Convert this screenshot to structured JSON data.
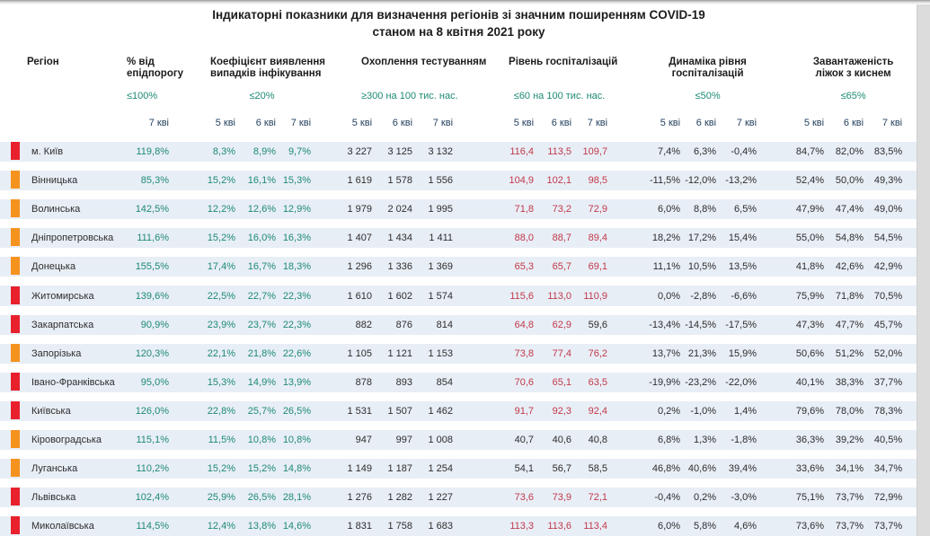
{
  "title": {
    "line1": "Індикаторні показники для визначення регіонів зі значним поширенням COVID-19",
    "line2": "станом на 8 квітня 2021 року"
  },
  "colors": {
    "alert_red_marker": "#e8212d",
    "alert_orange_marker": "#f6921e",
    "value_green": "#1d8a72",
    "value_red": "#c0394a",
    "row_band": "#e8eef6",
    "date_navy": "#25405e"
  },
  "columns": {
    "region_label": "Регіон",
    "hospital_red_threshold": 60,
    "groups": [
      {
        "title_lines": [
          "% від",
          "епідпорогу"
        ],
        "threshold": "≤100%",
        "dates": [
          "7 кві"
        ]
      },
      {
        "title_lines": [
          "Коефіцієнт виявлення",
          "випадків інфікування"
        ],
        "threshold": "≤20%",
        "dates": [
          "5 кві",
          "6 кві",
          "7 кві"
        ]
      },
      {
        "title_lines": [
          "Охоплення тестуванням"
        ],
        "threshold": "≥300 на 100 тис. нас.",
        "dates": [
          "5 кві",
          "6 кві",
          "7 кві"
        ]
      },
      {
        "title_lines": [
          "Рівень госпіталізацій"
        ],
        "threshold": "≤60 на 100 тис. нас.",
        "dates": [
          "5 кві",
          "6 кві",
          "7 кві"
        ]
      },
      {
        "title_lines": [
          "Динаміка рівня",
          "госпіталізацій"
        ],
        "threshold": "≤50%",
        "dates": [
          "5 кві",
          "6 кві",
          "7 кві"
        ]
      },
      {
        "title_lines": [
          "Завантаженість",
          "ліжок з киснем"
        ],
        "threshold": "≤65%",
        "dates": [
          "5 кві",
          "6 кві",
          "7 кві"
        ]
      }
    ]
  },
  "rows": [
    {
      "region": "м. Київ",
      "marker": "red",
      "pct": "119,8%",
      "coef": [
        "8,3%",
        "8,9%",
        "9,7%"
      ],
      "test": [
        "3 227",
        "3 125",
        "3 132"
      ],
      "hosp": [
        "116,4",
        "113,5",
        "109,7"
      ],
      "dyn": [
        "7,4%",
        "6,3%",
        "-0,4%"
      ],
      "beds": [
        "84,7%",
        "82,0%",
        "83,5%"
      ]
    },
    {
      "region": "Вінницька",
      "marker": "orange",
      "pct": "85,3%",
      "coef": [
        "15,2%",
        "16,1%",
        "15,3%"
      ],
      "test": [
        "1 619",
        "1 578",
        "1 556"
      ],
      "hosp": [
        "104,9",
        "102,1",
        "98,5"
      ],
      "dyn": [
        "-11,5%",
        "-12,0%",
        "-13,2%"
      ],
      "beds": [
        "52,4%",
        "50,0%",
        "49,3%"
      ]
    },
    {
      "region": "Волинська",
      "marker": "orange",
      "pct": "142,5%",
      "coef": [
        "12,2%",
        "12,6%",
        "12,9%"
      ],
      "test": [
        "1 979",
        "2 024",
        "1 995"
      ],
      "hosp": [
        "71,8",
        "73,2",
        "72,9"
      ],
      "dyn": [
        "6,0%",
        "8,8%",
        "6,5%"
      ],
      "beds": [
        "47,9%",
        "47,4%",
        "49,0%"
      ]
    },
    {
      "region": "Дніпропетровська",
      "marker": "orange",
      "pct": "111,6%",
      "coef": [
        "15,2%",
        "16,0%",
        "16,3%"
      ],
      "test": [
        "1 407",
        "1 434",
        "1 411"
      ],
      "hosp": [
        "88,0",
        "88,7",
        "89,4"
      ],
      "dyn": [
        "18,2%",
        "17,2%",
        "15,4%"
      ],
      "beds": [
        "55,0%",
        "54,8%",
        "54,5%"
      ]
    },
    {
      "region": "Донецька",
      "marker": "orange",
      "pct": "155,5%",
      "coef": [
        "17,4%",
        "16,7%",
        "18,3%"
      ],
      "test": [
        "1 296",
        "1 336",
        "1 369"
      ],
      "hosp": [
        "65,3",
        "65,7",
        "69,1"
      ],
      "dyn": [
        "11,1%",
        "10,5%",
        "13,5%"
      ],
      "beds": [
        "41,8%",
        "42,6%",
        "42,9%"
      ]
    },
    {
      "region": "Житомирська",
      "marker": "red",
      "pct": "139,6%",
      "coef": [
        "22,5%",
        "22,7%",
        "22,3%"
      ],
      "test": [
        "1 610",
        "1 602",
        "1 574"
      ],
      "hosp": [
        "115,6",
        "113,0",
        "110,9"
      ],
      "dyn": [
        "0,0%",
        "-2,8%",
        "-6,6%"
      ],
      "beds": [
        "75,9%",
        "71,8%",
        "70,5%"
      ]
    },
    {
      "region": "Закарпатська",
      "marker": "red",
      "pct": "90,9%",
      "coef": [
        "23,9%",
        "23,7%",
        "22,3%"
      ],
      "test": [
        "882",
        "876",
        "814"
      ],
      "hosp": [
        "64,8",
        "62,9",
        "59,6"
      ],
      "dyn": [
        "-13,4%",
        "-14,5%",
        "-17,5%"
      ],
      "beds": [
        "47,3%",
        "47,7%",
        "45,7%"
      ]
    },
    {
      "region": "Запорізька",
      "marker": "orange",
      "pct": "120,3%",
      "coef": [
        "22,1%",
        "21,8%",
        "22,6%"
      ],
      "test": [
        "1 105",
        "1 121",
        "1 153"
      ],
      "hosp": [
        "73,8",
        "77,4",
        "76,2"
      ],
      "dyn": [
        "13,7%",
        "21,3%",
        "15,9%"
      ],
      "beds": [
        "50,6%",
        "51,2%",
        "52,0%"
      ]
    },
    {
      "region": "Івано-Франківська",
      "marker": "red",
      "pct": "95,0%",
      "coef": [
        "15,3%",
        "14,9%",
        "13,9%"
      ],
      "test": [
        "878",
        "893",
        "854"
      ],
      "hosp": [
        "70,6",
        "65,1",
        "63,5"
      ],
      "dyn": [
        "-19,9%",
        "-23,2%",
        "-22,0%"
      ],
      "beds": [
        "40,1%",
        "38,3%",
        "37,7%"
      ]
    },
    {
      "region": "Київська",
      "marker": "red",
      "pct": "126,0%",
      "coef": [
        "22,8%",
        "25,7%",
        "26,5%"
      ],
      "test": [
        "1 531",
        "1 507",
        "1 462"
      ],
      "hosp": [
        "91,7",
        "92,3",
        "92,4"
      ],
      "dyn": [
        "0,2%",
        "-1,0%",
        "1,4%"
      ],
      "beds": [
        "79,6%",
        "78,0%",
        "78,3%"
      ]
    },
    {
      "region": "Кіровоградська",
      "marker": "orange",
      "pct": "115,1%",
      "coef": [
        "11,5%",
        "10,8%",
        "10,8%"
      ],
      "test": [
        "947",
        "997",
        "1 008"
      ],
      "hosp": [
        "40,7",
        "40,6",
        "40,8"
      ],
      "dyn": [
        "6,8%",
        "1,3%",
        "-1,8%"
      ],
      "beds": [
        "36,3%",
        "39,2%",
        "40,5%"
      ]
    },
    {
      "region": "Луганська",
      "marker": "orange",
      "pct": "110,2%",
      "coef": [
        "15,2%",
        "15,2%",
        "14,8%"
      ],
      "test": [
        "1 149",
        "1 187",
        "1 254"
      ],
      "hosp": [
        "54,1",
        "56,7",
        "58,5"
      ],
      "dyn": [
        "46,8%",
        "40,6%",
        "39,4%"
      ],
      "beds": [
        "33,6%",
        "34,1%",
        "34,7%"
      ]
    },
    {
      "region": "Львівська",
      "marker": "red",
      "pct": "102,4%",
      "coef": [
        "25,9%",
        "26,5%",
        "28,1%"
      ],
      "test": [
        "1 276",
        "1 282",
        "1 227"
      ],
      "hosp": [
        "73,6",
        "73,9",
        "72,1"
      ],
      "dyn": [
        "-0,4%",
        "0,2%",
        "-3,0%"
      ],
      "beds": [
        "75,1%",
        "73,7%",
        "72,9%"
      ]
    },
    {
      "region": "Миколаївська",
      "marker": "red",
      "pct": "114,5%",
      "coef": [
        "12,4%",
        "13,8%",
        "14,6%"
      ],
      "test": [
        "1 831",
        "1 758",
        "1 683"
      ],
      "hosp": [
        "113,3",
        "113,6",
        "113,4"
      ],
      "dyn": [
        "6,0%",
        "5,8%",
        "4,6%"
      ],
      "beds": [
        "73,6%",
        "73,7%",
        "73,7%"
      ]
    }
  ]
}
